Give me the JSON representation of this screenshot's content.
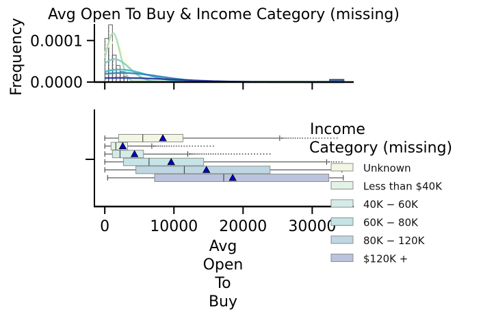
{
  "chart_data": {
    "type": "histogram+boxplot",
    "title": "Avg Open To Buy & Income Category (missing)",
    "top_panel": {
      "ylabel": "Frequency",
      "yticks": [
        "0.0000",
        "0.0001"
      ],
      "ylim": [
        0,
        0.00014
      ],
      "xlim": [
        -1500,
        36000
      ],
      "bin_edges": [
        0,
        550,
        1100,
        1650,
        2200,
        2750,
        3300
      ],
      "bins": [
        0.000105,
        0.000138,
        6.5e-05,
        4e-05,
        2.5e-05,
        1.4e-05
      ],
      "tail_bin": {
        "from": 32500,
        "to": 34600,
        "value": 6.5e-06
      },
      "kde": [
        {
          "name": "Unknown",
          "color": "#ffffd9",
          "peak_x": 1300,
          "peak": 9.6e-05,
          "width": 1600
        },
        {
          "name": "Less than $40K",
          "color": "#a9dcb6",
          "peak_x": 1200,
          "peak": 0.000118,
          "width": 1000
        },
        {
          "name": "$40K - $60K",
          "color": "#7fcdbb",
          "peak_x": 1400,
          "peak": 5.5e-05,
          "width": 2200
        },
        {
          "name": "$60K - $80K",
          "color": "#41b6c4",
          "peak_x": 2200,
          "peak": 3e-05,
          "width": 3800
        },
        {
          "name": "$80K - $120K",
          "color": "#2c7fb8",
          "peak_x": 2500,
          "peak": 2.2e-05,
          "width": 5500
        },
        {
          "name": "$120K +",
          "color": "#253494",
          "peak_x": 2000,
          "peak": 1e-05,
          "width": 8000
        }
      ]
    },
    "bottom_panel": {
      "xlabel": [
        "Avg",
        "Open",
        "To",
        "Buy"
      ],
      "xticks": [
        "0",
        "10000",
        "20000",
        "30000"
      ],
      "xtick_values": [
        0,
        10000,
        20000,
        30000
      ],
      "xlim": [
        -1500,
        36000
      ],
      "boxes": [
        {
          "name": "Unknown",
          "color": "#f4f6e4",
          "whislo": 0,
          "q1": 2000,
          "med": 5500,
          "q3": 11300,
          "whishi": 25300,
          "mean": 8400,
          "outliers_from": 25500,
          "outliers_to": 33600
        },
        {
          "name": "Less than $40K",
          "color": "#e4f2e6",
          "whislo": 0,
          "q1": 900,
          "med": 1600,
          "q3": 3300,
          "whishi": 6800,
          "mean": 2600,
          "outliers_from": 7000,
          "outliers_to": 15700
        },
        {
          "name": "$40K - $60K",
          "color": "#d5ebe7",
          "whislo": 0,
          "q1": 1100,
          "med": 2200,
          "q3": 5600,
          "whishi": 12000,
          "mean": 4300,
          "outliers_from": 12200,
          "outliers_to": 23900
        },
        {
          "name": "$60K - $80K",
          "color": "#c6e3e5",
          "whislo": 0,
          "q1": 2700,
          "med": 6400,
          "q3": 14300,
          "whishi": 32100,
          "mean": 9600,
          "outliers_from": 32300,
          "outliers_to": 34300
        },
        {
          "name": "$80K - $120K",
          "color": "#bfd6e3",
          "whislo": 0,
          "q1": 4500,
          "med": 11500,
          "q3": 23900,
          "whishi": 34300,
          "mean": 14700,
          "outliers_from": null,
          "outliers_to": null
        },
        {
          "name": "$120K +",
          "color": "#bcc3dc",
          "whislo": 400,
          "q1": 7200,
          "med": 17200,
          "q3": 32400,
          "whishi": 34500,
          "mean": 18500,
          "outliers_from": null,
          "outliers_to": null
        }
      ]
    },
    "legend": {
      "title_lines": [
        "Income",
        "Category (missing)"
      ],
      "placement": "right",
      "entries": [
        "Unknown",
        "Less than $40K",
        "$40K - $60K",
        "$60K - $80K",
        "$80K - $120K",
        "$120K +"
      ],
      "entry_labels": [
        "Unknown",
        "Less than $40K",
        "40K − 60K",
        "60K − 80K",
        "80K − 120K",
        "$120K +"
      ],
      "entry_colors": [
        "#f4f6e4",
        "#e4f2e6",
        "#d5ebe7",
        "#c6e3e5",
        "#bfd6e3",
        "#bcc3dc"
      ]
    },
    "mean_marker_color": "#0000cc",
    "grid": false
  }
}
